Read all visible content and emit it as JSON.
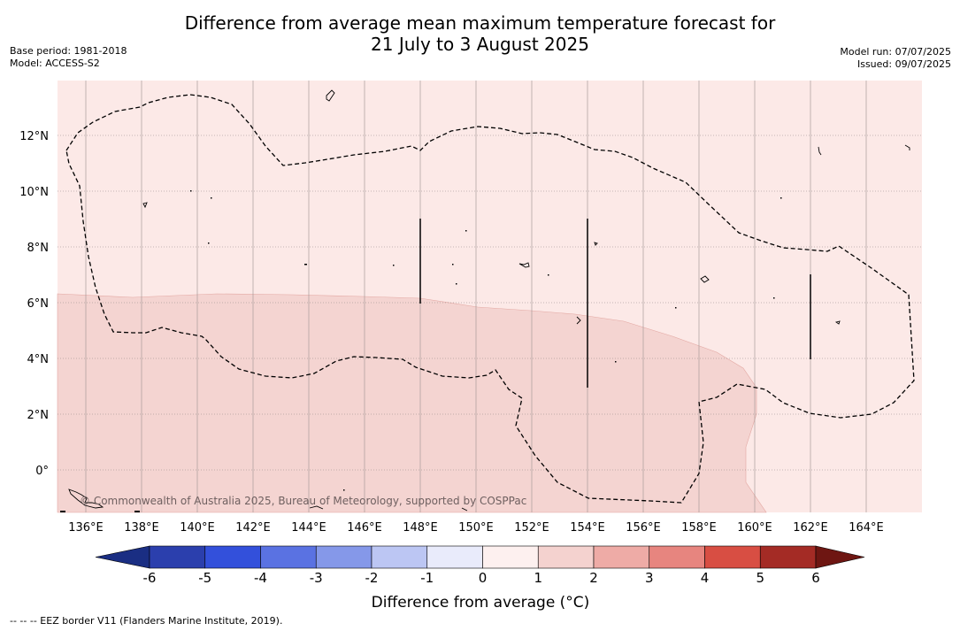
{
  "title": {
    "line1": "Difference from average mean maximum temperature forecast for",
    "line2": "21 July to 3 August 2025"
  },
  "meta": {
    "base_period": "Base period: 1981-2018",
    "model": "Model: ACCESS-S2",
    "model_run": "Model run: 07/07/2025",
    "issued": "Issued: 09/07/2025"
  },
  "map": {
    "lon_labels": [
      "136°E",
      "138°E",
      "140°E",
      "142°E",
      "144°E",
      "146°E",
      "148°E",
      "150°E",
      "152°E",
      "154°E",
      "156°E",
      "158°E",
      "160°E",
      "162°E",
      "164°E"
    ],
    "lat_labels": [
      "12°N",
      "10°N",
      "8°N",
      "6°N",
      "4°N",
      "2°N",
      "0°"
    ],
    "copyright": "© Commonwealth of Australia 2025, Bureau of Meteorology, supported by COSPPac",
    "fill_colors": {
      "anomaly_0_to_1": "#fce9e7",
      "anomaly_1_to_2": "#f4d4d1"
    }
  },
  "colorbar": {
    "ticks": [
      "-6",
      "-5",
      "-4",
      "-3",
      "-2",
      "-1",
      "0",
      "1",
      "2",
      "3",
      "4",
      "5",
      "6"
    ],
    "colors": [
      "#1a2e83",
      "#2b3fad",
      "#3350db",
      "#5a72e2",
      "#8598e9",
      "#bcc6f3",
      "#e9ebfb",
      "#fdf0ef",
      "#f4d2cf",
      "#eeaba6",
      "#e7857f",
      "#d84e43",
      "#a42b25",
      "#6e1612"
    ],
    "label": "Difference from average (°C)"
  },
  "footer": "-- -- -- EEZ border V11 (Flanders Marine Institute, 2019)."
}
